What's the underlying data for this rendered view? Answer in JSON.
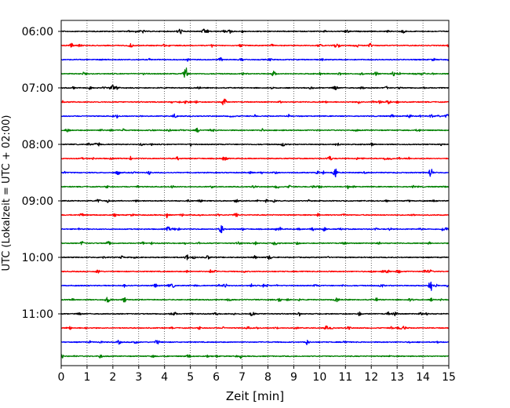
{
  "chart_data": {
    "type": "line",
    "title": "",
    "xlabel": "Zeit  [min]",
    "ylabel": "UTC (Lokalzeit = UTC + 02:00)",
    "xlim": [
      0,
      15
    ],
    "x_ticks": [
      "0",
      "1",
      "2",
      "3",
      "4",
      "5",
      "6",
      "7",
      "8",
      "9",
      "10",
      "11",
      "12",
      "13",
      "14",
      "15"
    ],
    "y_tick_labels": [
      "06:00",
      "07:00",
      "08:00",
      "09:00",
      "10:00",
      "11:00"
    ],
    "grid": "vertical dotted lines at each minute",
    "trace_colors": [
      "#000000",
      "#ff0000",
      "#0000ff",
      "#008000"
    ],
    "traces": [
      {
        "start": "06:00",
        "color": "#000000"
      },
      {
        "start": "06:15",
        "color": "#ff0000"
      },
      {
        "start": "06:30",
        "color": "#0000ff"
      },
      {
        "start": "06:45",
        "color": "#008000"
      },
      {
        "start": "07:00",
        "color": "#000000"
      },
      {
        "start": "07:15",
        "color": "#ff0000"
      },
      {
        "start": "07:30",
        "color": "#0000ff"
      },
      {
        "start": "07:45",
        "color": "#008000"
      },
      {
        "start": "08:00",
        "color": "#000000"
      },
      {
        "start": "08:15",
        "color": "#ff0000"
      },
      {
        "start": "08:30",
        "color": "#0000ff"
      },
      {
        "start": "08:45",
        "color": "#008000"
      },
      {
        "start": "09:00",
        "color": "#000000"
      },
      {
        "start": "09:15",
        "color": "#ff0000"
      },
      {
        "start": "09:30",
        "color": "#0000ff"
      },
      {
        "start": "09:45",
        "color": "#008000"
      },
      {
        "start": "10:00",
        "color": "#000000"
      },
      {
        "start": "10:15",
        "color": "#ff0000"
      },
      {
        "start": "10:30",
        "color": "#0000ff"
      },
      {
        "start": "10:45",
        "color": "#008000"
      },
      {
        "start": "11:00",
        "color": "#000000"
      },
      {
        "start": "11:15",
        "color": "#ff0000"
      },
      {
        "start": "11:30",
        "color": "#0000ff"
      },
      {
        "start": "11:45",
        "color": "#008000"
      }
    ],
    "notable_events": [
      {
        "trace": "06:45",
        "x": 4.8,
        "amplitude": 0.6
      },
      {
        "trace": "07:15",
        "x": 6.3,
        "amplitude": 0.35
      },
      {
        "trace": "08:30",
        "x": 10.6,
        "amplitude": 0.4
      },
      {
        "trace": "08:30",
        "x": 14.3,
        "amplitude": 0.35
      },
      {
        "trace": "09:30",
        "x": 6.2,
        "amplitude": 0.3
      },
      {
        "trace": "10:30",
        "x": 14.3,
        "amplitude": 0.4
      }
    ]
  }
}
